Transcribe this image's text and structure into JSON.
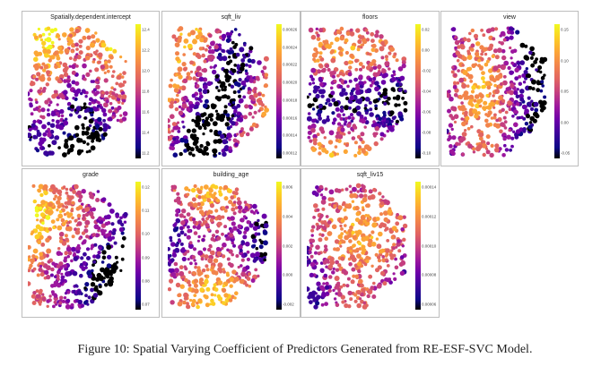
{
  "caption": "Figure 10: Spatial Varying Coefficient of Predictors Generated from RE-ESF-SVC Model.",
  "colors": {
    "palette": [
      "#0d0887",
      "#3a049a",
      "#6a00a8",
      "#9c179e",
      "#c43e7f",
      "#e16462",
      "#f2844b",
      "#fca636",
      "#fcce25",
      "#f0f921"
    ],
    "lowest": "#000000",
    "panel_border": "#bdbdbd"
  },
  "panels": [
    {
      "title": "Spatially.dependent.intercept",
      "ticks": [
        "12.4",
        "12.2",
        "12.0",
        "11.8",
        "11.6",
        "11.4",
        "11.2"
      ]
    },
    {
      "title": "sqft_liv",
      "ticks": [
        "0.00026",
        "0.00024",
        "0.00022",
        "0.00020",
        "0.00018",
        "0.00016",
        "0.00014",
        "0.00012"
      ]
    },
    {
      "title": "floors",
      "ticks": [
        "0.02",
        "0.00",
        "-0.02",
        "-0.04",
        "-0.06",
        "-0.08",
        "-0.10"
      ]
    },
    {
      "title": "view",
      "ticks": [
        "0.15",
        "0.10",
        "0.05",
        "0.00",
        "-0.05"
      ]
    },
    {
      "title": "grade",
      "ticks": [
        "0.12",
        "0.11",
        "0.10",
        "0.09",
        "0.08",
        "0.07"
      ]
    },
    {
      "title": "building_age",
      "ticks": [
        "0.006",
        "0.004",
        "0.002",
        "0.000",
        "-0.002"
      ]
    },
    {
      "title": "sqft_liv15",
      "ticks": [
        "0.00014",
        "0.00012",
        "0.00010",
        "0.00008",
        "0.00006"
      ]
    }
  ]
}
